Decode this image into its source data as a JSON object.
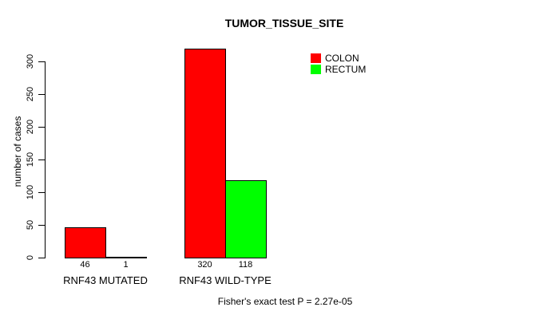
{
  "chart_data": {
    "type": "bar",
    "title": "TUMOR_TISSUE_SITE",
    "xlabel": "",
    "ylabel": "number of cases",
    "categories": [
      "RNF43 MUTATED",
      "RNF43 WILD-TYPE"
    ],
    "series": [
      {
        "name": "COLON",
        "color": "#ff0000",
        "values": [
          46,
          320
        ]
      },
      {
        "name": "RECTUM",
        "color": "#00ff00",
        "values": [
          1,
          118
        ]
      }
    ],
    "bar_value_labels": [
      [
        "46",
        "1"
      ],
      [
        "320",
        "118"
      ]
    ],
    "ylim": [
      0,
      300
    ],
    "yticks": [
      0,
      50,
      100,
      150,
      200,
      250,
      300
    ],
    "grid": false,
    "legend_position": "top-right",
    "legend_entries": [
      {
        "label": "COLON",
        "color": "#ff0000"
      },
      {
        "label": "RECTUM",
        "color": "#00ff00"
      }
    ],
    "annotation": "Fisher's exact test P = 2.27e-05",
    "bar_border_color": "#000000",
    "background_color": "#ffffff",
    "text_color": "#000000"
  }
}
